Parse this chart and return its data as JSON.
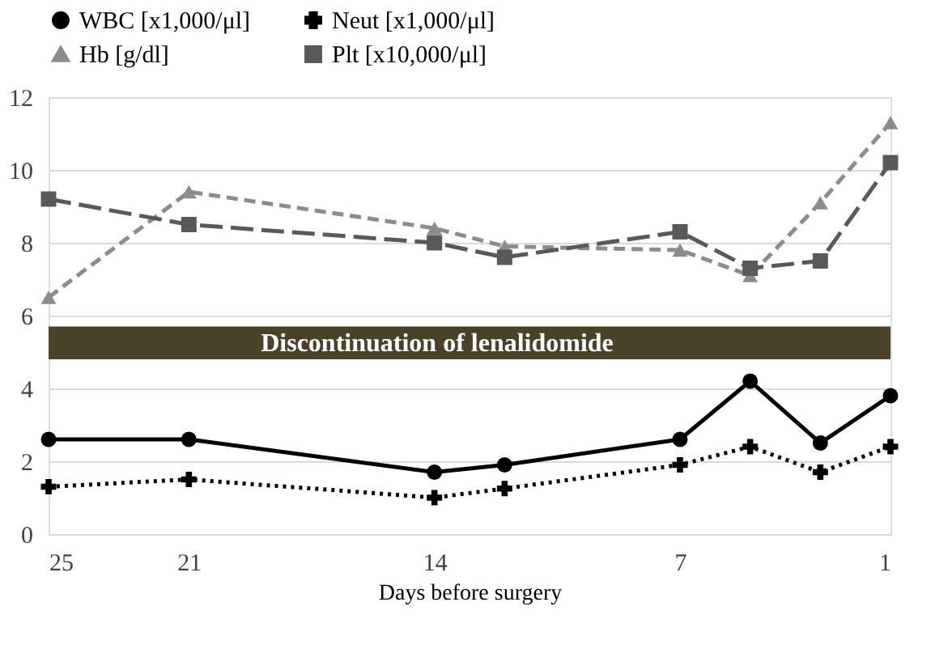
{
  "chart_data": {
    "type": "line",
    "xlabel": "Days before surgery",
    "x": [
      25,
      21,
      14,
      12,
      7,
      5,
      3,
      1
    ],
    "xlim": [
      25,
      1
    ],
    "xticks": [
      25,
      21,
      14,
      7,
      1
    ],
    "bands": [
      {
        "axis": "y",
        "from": 4.8,
        "to": 5.7,
        "label": "Discontinuation of lenalidomide",
        "color": "#4a4228"
      }
    ],
    "ylim": [
      0,
      12
    ],
    "yticks": [
      0,
      2,
      4,
      6,
      8,
      10,
      12
    ],
    "grid": "y",
    "legend": "top",
    "series": [
      {
        "name": "WBC [x1,000/μl]",
        "color": "#000000",
        "marker": "circle",
        "line_style": "solid",
        "values": [
          2.6,
          2.6,
          1.7,
          1.9,
          2.6,
          4.2,
          2.5,
          3.8
        ]
      },
      {
        "name": "Neut [x1,000/μl]",
        "color": "#000000",
        "marker": "cross",
        "line_style": "dotted",
        "values": [
          1.3,
          1.5,
          1.0,
          1.25,
          1.9,
          2.4,
          1.7,
          2.4
        ]
      },
      {
        "name": "Hb [g/dl]",
        "color": "#8c8c8c",
        "marker": "triangle",
        "line_style": "dashed",
        "values": [
          6.5,
          9.4,
          8.4,
          7.9,
          7.8,
          7.1,
          9.1,
          11.3
        ]
      },
      {
        "name": "Plt [x10,000/μl]",
        "color": "#595959",
        "marker": "square",
        "line_style": "dashed",
        "values": [
          9.2,
          8.5,
          8.0,
          7.6,
          8.3,
          7.3,
          7.5,
          10.2
        ]
      }
    ]
  }
}
